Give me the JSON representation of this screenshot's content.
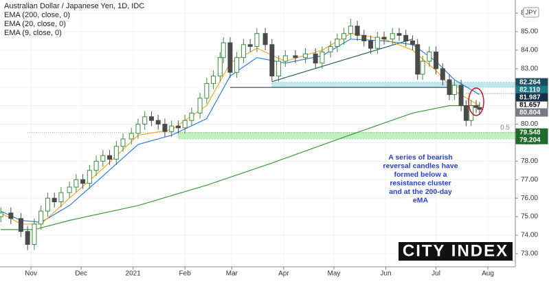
{
  "chart_data": {
    "type": "candlestick",
    "title": "Australian Dollar / Japanese Yen, 1D, IDC",
    "currency": "JPY",
    "x": [
      13,
      19,
      25,
      29,
      33,
      37,
      41,
      45,
      49,
      54,
      58,
      62,
      66,
      70,
      74,
      78,
      82,
      86,
      91,
      95,
      99,
      103,
      107,
      111,
      115,
      119,
      123,
      127,
      132,
      136,
      140,
      144,
      146,
      150,
      154,
      158,
      162,
      166,
      171,
      175,
      179,
      183,
      189,
      195,
      201,
      205,
      210,
      214,
      218,
      222,
      226,
      230,
      234,
      238,
      242,
      247,
      251,
      255,
      259,
      262,
      265,
      269,
      273,
      277,
      281,
      284,
      288,
      291,
      294,
      297,
      299
    ],
    "open": [
      75.0,
      75.2,
      74.9,
      74.2,
      73.5,
      74.6,
      75.3,
      76.0,
      75.8,
      76.3,
      76.6,
      77.0,
      76.8,
      77.5,
      78.0,
      78.3,
      78.1,
      78.8,
      79.2,
      79.5,
      80.0,
      80.4,
      80.2,
      80.0,
      79.6,
      79.9,
      79.8,
      80.2,
      80.6,
      81.4,
      82.2,
      82.6,
      83.6,
      84.4,
      82.8,
      83.6,
      84.3,
      84.2,
      84.9,
      84.3,
      82.6,
      83.4,
      83.7,
      83.6,
      83.8,
      83.3,
      83.9,
      84.2,
      84.6,
      84.9,
      85.3,
      84.8,
      84.5,
      84.1,
      84.7,
      84.6,
      84.9,
      84.8,
      84.5,
      84.3,
      82.7,
      83.4,
      83.9,
      83.0,
      82.4,
      81.6,
      82.1,
      81.0,
      80.2,
      81.0,
      80.9
    ],
    "high": [
      75.5,
      75.5,
      75.2,
      74.5,
      74.9,
      75.6,
      76.3,
      76.3,
      76.6,
      76.9,
      77.3,
      77.3,
      77.8,
      78.3,
      78.6,
      78.6,
      79.1,
      79.5,
      79.8,
      80.3,
      80.7,
      80.7,
      80.5,
      80.3,
      80.2,
      80.2,
      80.5,
      80.9,
      81.7,
      82.5,
      82.9,
      83.9,
      84.7,
      84.7,
      83.9,
      84.6,
      84.6,
      85.2,
      85.2,
      84.6,
      83.7,
      84.0,
      84.0,
      84.1,
      84.1,
      84.2,
      84.5,
      84.9,
      85.2,
      85.7,
      85.6,
      85.1,
      84.8,
      85.0,
      85.0,
      85.2,
      85.2,
      85.1,
      84.8,
      84.6,
      83.7,
      84.2,
      84.2,
      83.3,
      82.7,
      82.4,
      82.4,
      81.3,
      81.3,
      81.3,
      81.2
    ],
    "low": [
      74.7,
      74.6,
      73.9,
      73.2,
      73.2,
      74.3,
      75.0,
      75.5,
      75.5,
      76.0,
      76.3,
      76.5,
      76.5,
      77.2,
      77.7,
      77.8,
      77.8,
      78.5,
      78.9,
      79.2,
      79.7,
      79.9,
      79.7,
      79.3,
      79.3,
      79.5,
      79.5,
      79.9,
      80.3,
      81.1,
      81.9,
      82.3,
      83.3,
      82.5,
      82.5,
      83.3,
      83.9,
      83.9,
      84.0,
      82.3,
      82.3,
      83.1,
      83.3,
      83.3,
      83.0,
      83.0,
      83.6,
      83.9,
      84.3,
      84.6,
      84.5,
      84.2,
      83.8,
      83.8,
      84.3,
      84.3,
      84.5,
      84.2,
      84.0,
      82.4,
      82.4,
      83.1,
      82.7,
      82.1,
      81.3,
      81.3,
      80.7,
      79.9,
      79.9,
      80.6,
      80.5
    ],
    "close": [
      75.2,
      74.9,
      74.2,
      73.5,
      74.6,
      75.3,
      76.0,
      75.8,
      76.3,
      76.6,
      77.0,
      76.8,
      77.5,
      78.0,
      78.3,
      78.1,
      78.8,
      79.2,
      79.5,
      80.0,
      80.4,
      80.2,
      80.0,
      79.6,
      79.9,
      79.8,
      80.2,
      80.6,
      81.4,
      82.2,
      82.6,
      83.6,
      84.4,
      82.8,
      83.6,
      84.3,
      84.2,
      84.9,
      84.3,
      82.6,
      83.4,
      83.7,
      83.6,
      83.8,
      83.3,
      83.9,
      84.2,
      84.6,
      84.9,
      85.3,
      84.8,
      84.5,
      84.1,
      84.7,
      84.6,
      84.9,
      84.8,
      84.5,
      84.3,
      82.7,
      83.4,
      83.9,
      83.0,
      82.4,
      81.6,
      82.1,
      81.0,
      80.2,
      81.0,
      80.9,
      80.8
    ],
    "up_color": "#3b8a3e",
    "down_color": "#4a4a4a",
    "series": [
      {
        "name": "EMA (200, close, 0)",
        "color": "#3a9a3a",
        "x": [
          13,
          33,
          54,
          95,
          136,
          175,
          218,
          259,
          281,
          299
        ],
        "values": [
          74.3,
          74.3,
          74.8,
          75.6,
          76.7,
          77.9,
          79.3,
          80.6,
          81.0,
          81.0
        ]
      },
      {
        "name": "EMA (20, close, 0)",
        "color": "#2f7de1",
        "x": [
          13,
          25,
          37,
          54,
          74,
          95,
          115,
          136,
          150,
          166,
          183,
          205,
          222,
          242,
          259,
          273,
          284,
          299
        ],
        "values": [
          75.3,
          74.8,
          74.7,
          75.6,
          77.2,
          78.9,
          79.4,
          80.3,
          82.6,
          83.6,
          83.3,
          83.7,
          84.6,
          84.5,
          84.3,
          83.4,
          82.4,
          81.6
        ]
      },
      {
        "name": "EMA (9, close, 0)",
        "color": "#f5a623",
        "x": [
          13,
          25,
          37,
          54,
          74,
          95,
          115,
          136,
          150,
          166,
          183,
          205,
          222,
          242,
          259,
          273,
          284,
          299
        ],
        "values": [
          75.2,
          74.6,
          74.6,
          76.0,
          77.6,
          79.4,
          79.7,
          81.0,
          83.3,
          84.1,
          83.4,
          84.0,
          84.9,
          84.6,
          84.0,
          82.9,
          81.8,
          81.0
        ]
      }
    ],
    "zones": [
      {
        "x0": 175,
        "low": 81.987,
        "high": 82.264,
        "color": "#8fd6e0"
      },
      {
        "x0": 119,
        "low": 79.204,
        "high": 79.548,
        "color": "#8ee68e"
      }
    ],
    "support_line": {
      "x0": 150,
      "x1": 281,
      "value": 81.987
    },
    "trendline": {
      "x": [
        175,
        259
      ],
      "values": [
        82.3,
        84.6
      ],
      "color": "#2a5a6a"
    },
    "fib": {
      "x0": 29,
      "value": 79.548,
      "label": "0.5"
    },
    "marker_line": {
      "x0": 291,
      "value": 81.657
    },
    "axis_labels": [
      {
        "value": 82.264,
        "bg": "#1d4e5f",
        "fg": "#ffffff"
      },
      {
        "value": 82.11,
        "label": "82.110",
        "bg": "#1b7a86",
        "fg": "#ffffff"
      },
      {
        "value": 81.987,
        "bg": "#14304a",
        "fg": "#ffffff"
      },
      {
        "value": 81.657,
        "bg": "#ffffff",
        "fg": "#000000"
      },
      {
        "value": 80.804,
        "bg": "#787b86",
        "fg": "#ffffff"
      },
      {
        "value": 79.548,
        "bg": "#1e6b2a",
        "fg": "#ffffff"
      },
      {
        "value": 79.204,
        "bg": "#1e6b2a",
        "fg": "#ffffff"
      }
    ],
    "annotation": [
      "A series of bearish",
      "reversal candles have",
      "formed below a",
      "resistance cluster",
      "and at the 200-day",
      "eMA"
    ],
    "logo": "CITY INDEX",
    "xlim": [
      12.5,
      320.4
    ],
    "ylim": [
      72.29,
      86.71
    ],
    "xticks": [
      {
        "value": 31,
        "label": "Nov"
      },
      {
        "value": 61,
        "label": "Dec"
      },
      {
        "value": 92,
        "label": "2021"
      },
      {
        "value": 123,
        "label": "Feb"
      },
      {
        "value": 151,
        "label": "Mar"
      },
      {
        "value": 182,
        "label": "Apr"
      },
      {
        "value": 212,
        "label": "May"
      },
      {
        "value": 243,
        "label": "Jun"
      },
      {
        "value": 273,
        "label": "Jul"
      },
      {
        "value": 304,
        "label": "Aug"
      }
    ],
    "yticks": [
      {
        "value": 73,
        "label": "73.00"
      },
      {
        "value": 74,
        "label": "74.00"
      },
      {
        "value": 75,
        "label": "75.00"
      },
      {
        "value": 76,
        "label": "76.00"
      },
      {
        "value": 77,
        "label": "77.00"
      },
      {
        "value": 78,
        "label": "78.00"
      },
      {
        "value": 79,
        "label": "79.00"
      },
      {
        "value": 80,
        "label": "80.00"
      },
      {
        "value": 81,
        "label": "81.00"
      },
      {
        "value": 82,
        "label": "82.00"
      },
      {
        "value": 83,
        "label": "83.00"
      },
      {
        "value": 84,
        "label": "84.00"
      },
      {
        "value": 85,
        "label": "85.00"
      },
      {
        "value": 86,
        "label": "86.00"
      }
    ],
    "grid": true
  }
}
